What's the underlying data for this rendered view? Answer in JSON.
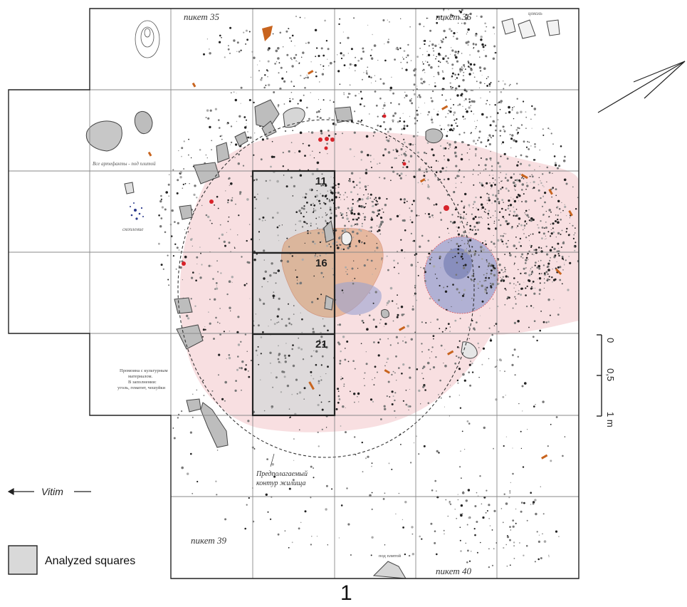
{
  "pickets": {
    "p35": "пикет 35",
    "p36": "пикет 36",
    "p39": "пикет 39",
    "p40": "пикет 40"
  },
  "notes": {
    "cokol": "цоколь",
    "all_artifacts": "Все артефакты - под плитой",
    "spinner": "скопление",
    "pit_1": "Промоина с культурным",
    "pit_2": "материалом.",
    "pit_3": "В заполнении:",
    "pit_4": "уголь, гематит, чешуйки",
    "under_slab": "под плитой",
    "contour_1": "Предполагаемый",
    "contour_2": "контур жилища"
  },
  "squares": {
    "s11": "11",
    "s16": "16",
    "s21": "21"
  },
  "scale": {
    "t0": "0",
    "t05": "0,5",
    "t1": "1 m"
  },
  "direction": {
    "river": "Vitim"
  },
  "legend": {
    "analyzed": "Analyzed squares"
  },
  "figure": {
    "number": "1"
  },
  "colors": {
    "grid": "#8a8a8a",
    "analyzed_fill": "#d9d9d9",
    "pink_zone": "#f7d9dc",
    "blue_hearth": "#9aa2d0",
    "orange_zone": "#d99a6a",
    "red_dot": "#d8232a"
  }
}
